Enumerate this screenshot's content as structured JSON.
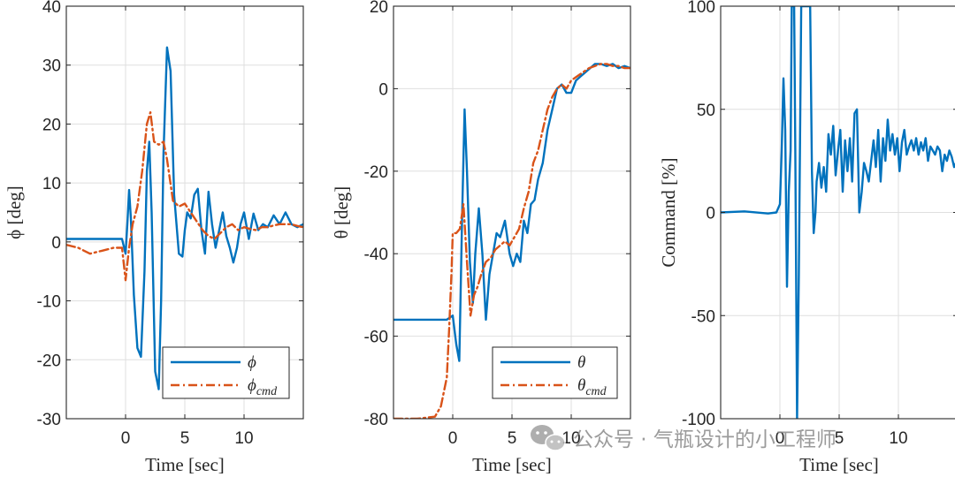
{
  "watermark": {
    "text": "公众号 · 气瓶设计的小工程师",
    "icon": "wechat-icon"
  },
  "chart_data": [
    {
      "type": "line",
      "xlabel": "Time [sec]",
      "ylabel": "ϕ [deg]",
      "xlim": [
        -5,
        15
      ],
      "ylim": [
        -30,
        40
      ],
      "xticks": [
        0,
        5,
        10
      ],
      "yticks": [
        -30,
        -20,
        -10,
        0,
        10,
        20,
        30,
        40
      ],
      "grid": true,
      "legend": "bottom-right",
      "series": [
        {
          "name": "ϕ",
          "color": "#0072BD",
          "style": "solid",
          "x": [
            -5,
            -0.3,
            0,
            0.15,
            0.3,
            0.45,
            0.7,
            1.0,
            1.3,
            1.6,
            1.8,
            2.0,
            2.2,
            2.5,
            2.8,
            3.0,
            3.2,
            3.5,
            3.8,
            4.1,
            4.5,
            4.8,
            5.0,
            5.2,
            5.5,
            5.8,
            6.1,
            6.4,
            6.7,
            7.0,
            7.3,
            7.6,
            7.9,
            8.2,
            8.5,
            8.8,
            9.1,
            9.4,
            9.7,
            10.0,
            10.4,
            10.8,
            11.2,
            11.6,
            12.0,
            12.5,
            13.0,
            13.5,
            14.0,
            14.5,
            15
          ],
          "y": [
            0.5,
            0.5,
            -2,
            3,
            8.8,
            4,
            -9,
            -18,
            -19.5,
            -5,
            12,
            17,
            5,
            -22,
            -25,
            -10,
            15,
            33,
            29,
            8,
            -2,
            -2.5,
            2,
            5,
            4,
            8,
            9,
            2,
            -2,
            8.5,
            3,
            -1,
            2,
            5,
            1,
            -1,
            -3.5,
            -1,
            3,
            5,
            0.5,
            4.8,
            2,
            3,
            2.5,
            4.5,
            3,
            5,
            3,
            2.5,
            3
          ]
        },
        {
          "name": "ϕcmd",
          "color": "#D95319",
          "style": "dash-dot",
          "x": [
            -5,
            -4,
            -3,
            -2,
            -1,
            -0.3,
            0,
            0.3,
            0.6,
            1.0,
            1.4,
            1.8,
            2.1,
            2.4,
            2.8,
            3.2,
            3.5,
            4.0,
            4.5,
            5.0,
            5.5,
            6.0,
            6.5,
            7.0,
            7.5,
            8.0,
            8.5,
            9.0,
            9.5,
            10.0,
            10.5,
            11.0,
            11.5,
            12.0,
            12.5,
            13.0,
            13.5,
            14.0,
            14.5,
            15
          ],
          "y": [
            -0.5,
            -1,
            -2,
            -1.5,
            -1,
            -1,
            -6.5,
            -1,
            3,
            6,
            12,
            20,
            22,
            17,
            16.5,
            17,
            14,
            7,
            6,
            6.5,
            5,
            3.5,
            2,
            1,
            0.5,
            1.5,
            2.5,
            3,
            2,
            2.5,
            2.2,
            2,
            2.5,
            2.5,
            2.8,
            3,
            3,
            3,
            2.7,
            2.5
          ]
        }
      ]
    },
    {
      "type": "line",
      "xlabel": "Time [sec]",
      "ylabel": "θ [deg]",
      "xlim": [
        -5,
        15
      ],
      "ylim": [
        -80,
        20
      ],
      "xticks": [
        0,
        5,
        10
      ],
      "yticks": [
        -80,
        -60,
        -40,
        -20,
        0,
        20
      ],
      "grid": true,
      "legend": "bottom-right",
      "series": [
        {
          "name": "θ",
          "color": "#0072BD",
          "style": "solid",
          "x": [
            -5,
            -0.5,
            0,
            0.3,
            0.55,
            0.8,
            1.0,
            1.2,
            1.45,
            1.7,
            1.9,
            2.2,
            2.5,
            2.8,
            3.1,
            3.4,
            3.7,
            4.0,
            4.4,
            4.8,
            5.1,
            5.4,
            5.7,
            6.0,
            6.3,
            6.6,
            6.9,
            7.2,
            7.6,
            8.0,
            8.4,
            8.8,
            9.2,
            9.6,
            10.0,
            10.4,
            10.8,
            11.2,
            11.6,
            12.0,
            12.5,
            13.0,
            13.5,
            14.0,
            14.5,
            15
          ],
          "y": [
            -56,
            -56,
            -55,
            -62,
            -66,
            -30,
            -5,
            -20,
            -42,
            -52,
            -40,
            -29,
            -40,
            -56,
            -45,
            -40,
            -35,
            -36,
            -32,
            -40,
            -43,
            -40,
            -42,
            -32,
            -35,
            -28,
            -27,
            -22,
            -18,
            -10,
            -5,
            0,
            1,
            -1,
            -1,
            2,
            3,
            4,
            5,
            6,
            6,
            5.5,
            6,
            5,
            5.5,
            5
          ]
        },
        {
          "name": "θcmd",
          "color": "#D95319",
          "style": "dash-dot",
          "x": [
            -5,
            -3,
            -1.5,
            -1,
            -0.5,
            -0.3,
            -0.1,
            0,
            0.3,
            0.6,
            0.9,
            1.2,
            1.5,
            1.8,
            2.1,
            2.4,
            2.8,
            3.2,
            3.6,
            4.0,
            4.4,
            4.8,
            5.2,
            5.6,
            6.0,
            6.4,
            6.8,
            7.2,
            7.6,
            8.0,
            8.4,
            8.8,
            9.2,
            9.6,
            10.0,
            10.5,
            11.0,
            11.5,
            12.0,
            12.5,
            13.0,
            13.5,
            14.0,
            14.5,
            15
          ],
          "y": [
            -80,
            -80,
            -79.5,
            -77,
            -70,
            -58,
            -44,
            -35,
            -35,
            -34,
            -28,
            -42,
            -55,
            -50,
            -48,
            -45,
            -42,
            -41,
            -39,
            -38,
            -37,
            -38,
            -36,
            -34,
            -29,
            -25,
            -18,
            -15,
            -10,
            -5,
            -2,
            0,
            1,
            0,
            2,
            3,
            4,
            5,
            5.5,
            6,
            6,
            5.5,
            5.5,
            5,
            5
          ]
        }
      ]
    },
    {
      "type": "line",
      "xlabel": "Time [sec]",
      "ylabel": "Command [%]",
      "xlim": [
        -5,
        15
      ],
      "ylim": [
        -100,
        100
      ],
      "xticks": [
        0,
        5,
        10
      ],
      "yticks": [
        -100,
        -50,
        0,
        50,
        100
      ],
      "grid": true,
      "legend": "none",
      "series": [
        {
          "color": "#0072BD",
          "style": "solid",
          "x": [
            -5,
            -3,
            -1,
            -0.3,
            0,
            0.15,
            0.3,
            0.45,
            0.6,
            0.75,
            0.9,
            1.0,
            1.1,
            1.2,
            1.3,
            1.45,
            1.6,
            1.8,
            1.95,
            2.1,
            2.25,
            2.4,
            2.55,
            2.7,
            2.85,
            3.0,
            3.1,
            3.3,
            3.5,
            3.7,
            3.9,
            4.1,
            4.3,
            4.5,
            4.7,
            4.9,
            5.1,
            5.3,
            5.5,
            5.7,
            5.9,
            6.1,
            6.3,
            6.5,
            6.7,
            6.9,
            7.1,
            7.3,
            7.5,
            7.7,
            7.9,
            8.1,
            8.3,
            8.5,
            8.7,
            8.9,
            9.1,
            9.3,
            9.5,
            9.7,
            9.9,
            10.1,
            10.3,
            10.5,
            10.7,
            10.9,
            11.1,
            11.3,
            11.5,
            11.7,
            11.9,
            12.1,
            12.3,
            12.5,
            12.7,
            12.9,
            13.1,
            13.3,
            13.5,
            13.7,
            13.9,
            14.1,
            14.3,
            14.5,
            14.7,
            15
          ],
          "y": [
            0,
            0.5,
            -0.5,
            0,
            4,
            30,
            65,
            40,
            -36,
            10,
            30,
            100,
            100,
            100,
            30,
            -100,
            -30,
            100,
            100,
            100,
            100,
            100,
            100,
            20,
            -10,
            0,
            15,
            24,
            12,
            22,
            10,
            38,
            28,
            42,
            18,
            30,
            40,
            10,
            35,
            20,
            36,
            15,
            48,
            50,
            0,
            10,
            24,
            20,
            15,
            25,
            35,
            22,
            40,
            15,
            36,
            25,
            45,
            30,
            38,
            28,
            36,
            20,
            34,
            40,
            28,
            32,
            35,
            30,
            36,
            28,
            34,
            30,
            36,
            25,
            32,
            30,
            28,
            32,
            30,
            20,
            28,
            25,
            30,
            27,
            22,
            26
          ]
        }
      ]
    }
  ]
}
